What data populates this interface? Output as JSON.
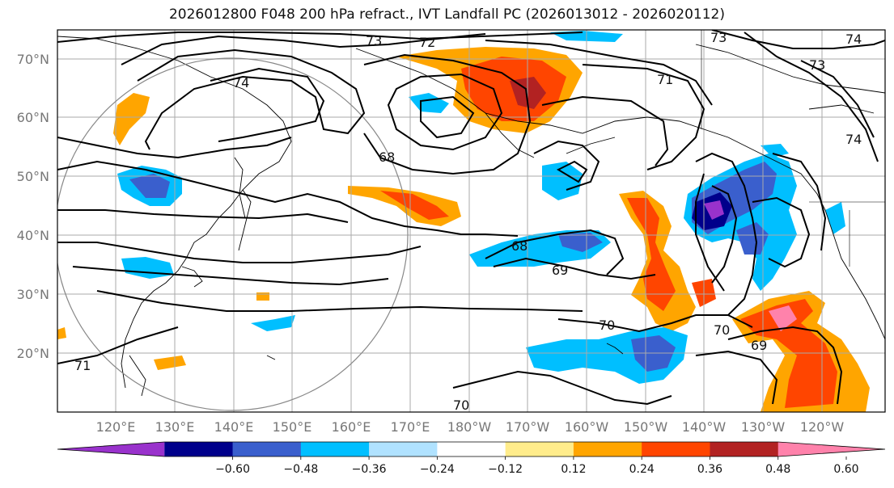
{
  "title": "2026012800 F048 200 hPa refract., IVT Landfall PC (2026013012 - 2026020112)",
  "map": {
    "lat_labels": [
      "70°N",
      "60°N",
      "50°N",
      "40°N",
      "30°N",
      "20°N"
    ],
    "lon_labels": [
      "120°E",
      "130°E",
      "140°E",
      "150°E",
      "160°E",
      "170°E",
      "180°W",
      "170°W",
      "160°W",
      "150°W",
      "140°W",
      "130°W",
      "120°W"
    ],
    "contour_labels": [
      "73",
      "72",
      "74",
      "71",
      "73",
      "74",
      "73",
      "74",
      "68",
      "68",
      "69",
      "70",
      "70",
      "69",
      "71",
      "70"
    ]
  },
  "colorbar": {
    "colors": [
      "#9932cc",
      "#00008b",
      "#3a5fcd",
      "#00bfff",
      "#b0e2ff",
      "#ffffff",
      "#ffec8b",
      "#ffa500",
      "#ff4500",
      "#b22222",
      "#ff82ab"
    ],
    "labels": [
      "−0.60",
      "−0.48",
      "−0.36",
      "−0.24",
      "−0.12",
      "0.12",
      "0.24",
      "0.36",
      "0.48",
      "0.60"
    ]
  }
}
